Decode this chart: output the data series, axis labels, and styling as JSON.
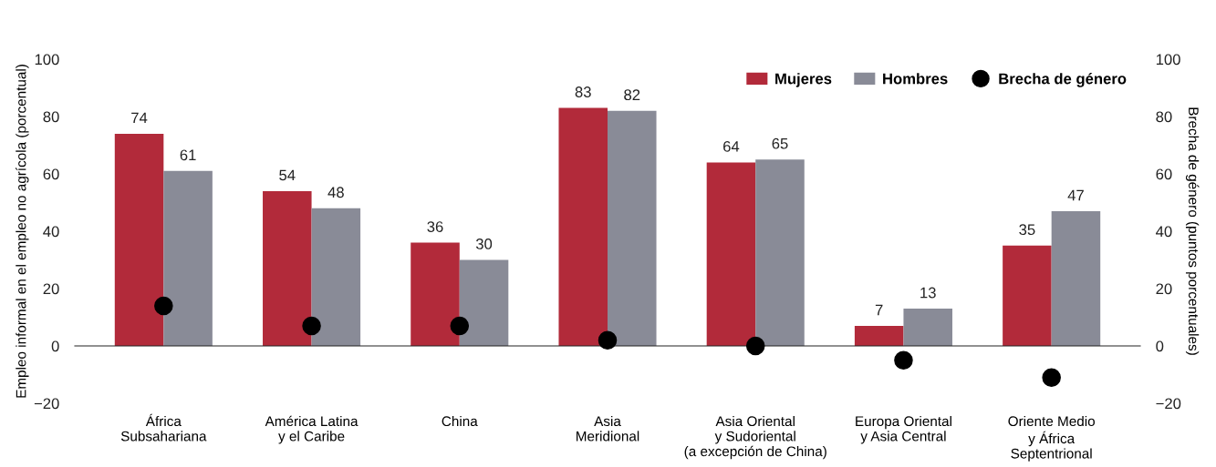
{
  "chart_data": {
    "type": "bar",
    "categories": [
      "África\nSubsahariana",
      "América Latina\ny el Caribe",
      "China",
      "Asia\nMeridional",
      "Asia Oriental\ny Sudoriental\n(a excepción de China)",
      "Europa Oriental\ny Asia Central",
      "Oriente Medio\ny África\nSeptentrional"
    ],
    "series": [
      {
        "name": "Mujeres",
        "color": "#b22a3a",
        "values": [
          74,
          54,
          36,
          83,
          64,
          7,
          35
        ],
        "value_labels": [
          "74",
          "54",
          "36",
          "83",
          "64",
          "7",
          "35"
        ]
      },
      {
        "name": "Hombres",
        "color": "#898b97",
        "values": [
          61,
          48,
          30,
          82,
          65,
          13,
          47
        ],
        "value_labels": [
          "61",
          "48",
          "30",
          "82",
          "65",
          "13",
          "47"
        ]
      },
      {
        "name": "Brecha de género",
        "type": "scatter",
        "color": "#000000",
        "values": [
          14,
          7,
          7,
          2,
          0,
          -5,
          -11
        ]
      }
    ],
    "ylabel": "Empleo informal en el empleo no agrícola (porcentual)",
    "y2label": "Brecha de género (puntos porcentuales)",
    "ylim": [
      -20,
      100
    ],
    "yticks": [
      {
        "value": -20,
        "label": "−20"
      },
      0,
      20,
      40,
      60,
      80,
      100
    ],
    "y2lim": [
      -20,
      100
    ],
    "y2ticks": [
      {
        "value": -20,
        "label": "−20"
      },
      0,
      20,
      40,
      60,
      80,
      100
    ],
    "legend": "top right",
    "marker": "circle"
  }
}
